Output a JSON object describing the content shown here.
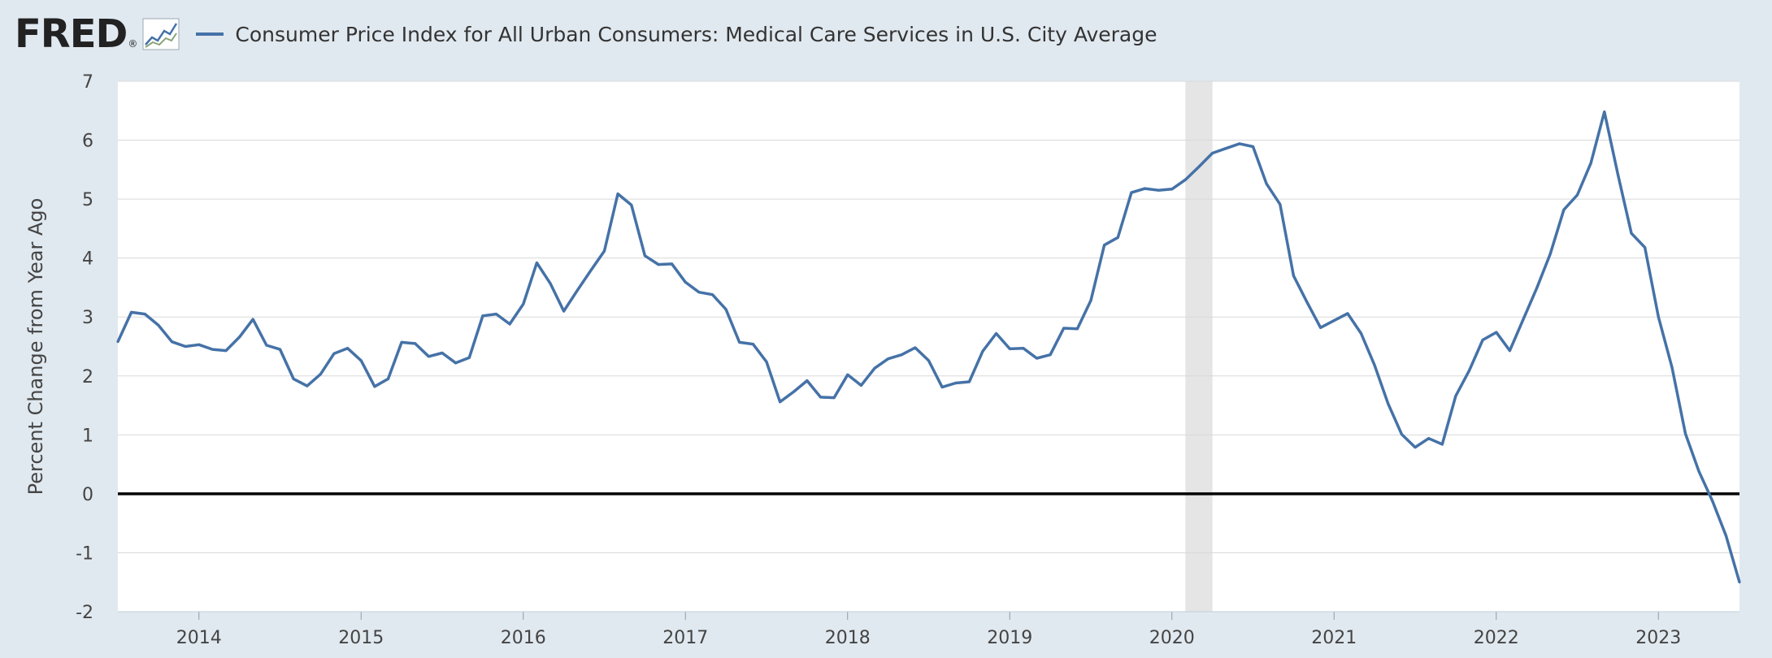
{
  "header": {
    "logo_text": "FRED",
    "logo_mark": "®",
    "legend_label": "Consumer Price Index for All Urban Consumers: Medical Care Services in U.S. City Average"
  },
  "colors": {
    "series": "#4572a7",
    "background": "#e1e9f0",
    "plot": "#ffffff",
    "recession": "#e5e5e5",
    "grid": "#d9d9d9"
  },
  "chart_data": {
    "type": "line",
    "title": "Consumer Price Index for All Urban Consumers: Medical Care Services in U.S. City Average",
    "xlabel": "",
    "ylabel": "Percent Change from Year Ago",
    "ylim": [
      -2,
      7
    ],
    "xlim": [
      2013.5,
      2023.5
    ],
    "y_ticks": [
      "-2",
      "-1",
      "0",
      "1",
      "2",
      "3",
      "4",
      "5",
      "6",
      "7"
    ],
    "x_ticks": [
      "2014",
      "2015",
      "2016",
      "2017",
      "2018",
      "2019",
      "2020",
      "2021",
      "2022",
      "2023"
    ],
    "grid": true,
    "legend": "top-left",
    "zero_line": true,
    "recession_shading": [
      {
        "start": 2020.083,
        "end": 2020.25
      }
    ],
    "series": [
      {
        "name": "Consumer Price Index for All Urban Consumers: Medical Care Services in U.S. City Average",
        "start": 2013.5,
        "frequency": "monthly",
        "values": [
          2.58,
          3.08,
          3.05,
          2.86,
          2.58,
          2.5,
          2.53,
          2.45,
          2.43,
          2.66,
          2.96,
          2.52,
          2.45,
          1.95,
          1.83,
          2.03,
          2.38,
          2.47,
          2.26,
          1.82,
          1.95,
          2.57,
          2.55,
          2.33,
          2.39,
          2.22,
          2.31,
          3.02,
          3.05,
          2.88,
          3.22,
          3.92,
          3.57,
          3.1,
          3.45,
          3.79,
          4.12,
          5.09,
          4.9,
          4.04,
          3.89,
          3.9,
          3.59,
          3.42,
          3.38,
          3.13,
          2.57,
          2.54,
          2.24,
          1.56,
          1.73,
          1.92,
          1.64,
          1.63,
          2.02,
          1.84,
          2.13,
          2.29,
          2.36,
          2.48,
          2.26,
          1.81,
          1.88,
          1.9,
          2.42,
          2.72,
          2.46,
          2.47,
          2.3,
          2.36,
          2.81,
          2.8,
          3.28,
          4.22,
          4.35,
          5.11,
          5.18,
          5.15,
          5.17,
          5.33,
          5.55,
          5.78,
          5.86,
          5.94,
          5.89,
          5.26,
          4.91,
          3.7,
          3.25,
          2.82,
          2.94,
          3.06,
          2.72,
          2.18,
          1.53,
          1.01,
          0.79,
          0.94,
          0.84,
          1.66,
          2.09,
          2.61,
          2.74,
          2.43,
          2.96,
          3.49,
          4.07,
          4.82,
          5.07,
          5.61,
          6.48,
          5.42,
          4.42,
          4.18,
          3.0,
          2.15,
          1.02,
          0.38,
          -0.12,
          -0.71,
          -1.5
        ]
      }
    ]
  }
}
